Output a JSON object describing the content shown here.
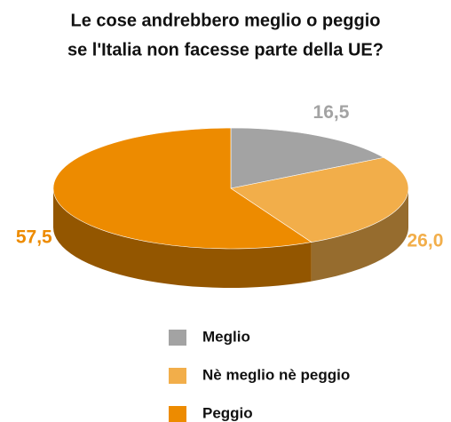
{
  "chart_data": {
    "type": "pie",
    "title": [
      "Le cose andrebbero meglio o peggio",
      "se l'Italia non facesse parte della UE?"
    ],
    "categories": [
      "Meglio",
      "Nè meglio nè peggio",
      "Peggio"
    ],
    "values": [
      16.5,
      26.0,
      57.5
    ],
    "value_labels": [
      "16,5",
      "26,0",
      "57,5"
    ],
    "colors": [
      "#a3a3a3",
      "#f2ae4a",
      "#ed8b00"
    ],
    "legend": "bottom"
  }
}
